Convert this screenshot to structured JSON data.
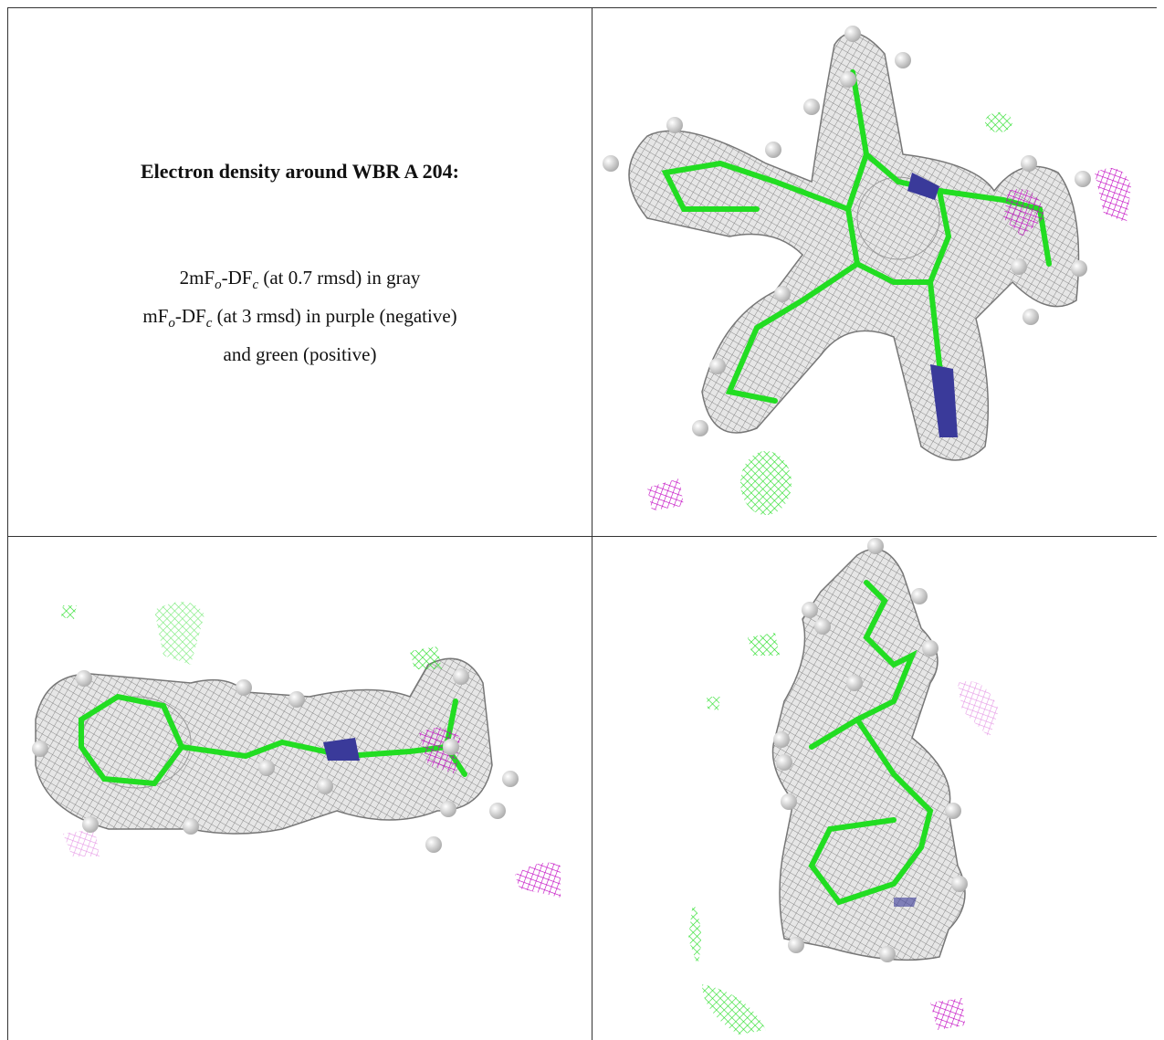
{
  "caption": {
    "title": "Electron density around WBR A 204:",
    "lines": [
      [
        "2mF",
        "o",
        "-DF",
        "c",
        " (at 0.7 rmsd) in gray"
      ],
      [
        "mF",
        "o",
        "-DF",
        "c",
        " (at 3 rmsd) in purple (negative)"
      ],
      [
        "and green (positive)"
      ]
    ]
  }
}
